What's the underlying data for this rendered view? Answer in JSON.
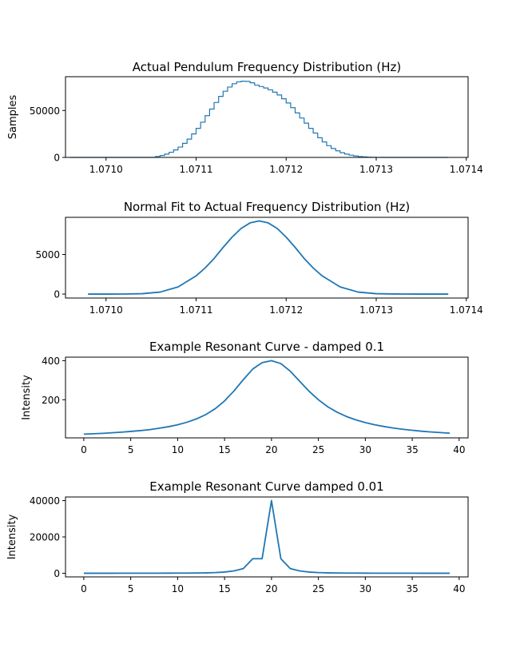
{
  "chart_data": [
    {
      "type": "histogram",
      "title": "Actual Pendulum Frequency Distribution (Hz)",
      "xlabel": "",
      "ylabel": "Samples",
      "xlim": [
        1.070955,
        1.071402
      ],
      "ylim": [
        0,
        86000
      ],
      "xticks": [
        1.071,
        1.0711,
        1.0712,
        1.0713,
        1.0714
      ],
      "xtick_labels": [
        "1.0710",
        "1.0711",
        "1.0712",
        "1.0713",
        "1.0714"
      ],
      "yticks": [
        0,
        50000
      ],
      "ytick_labels": [
        "0",
        "50000"
      ],
      "grid": false,
      "color": "#1f77b4",
      "x": [
        1.07096,
        1.071,
        1.07104,
        1.07105,
        1.071055,
        1.07106,
        1.071065,
        1.07107,
        1.071075,
        1.07108,
        1.071085,
        1.07109,
        1.071095,
        1.0711,
        1.071105,
        1.07111,
        1.071115,
        1.07112,
        1.071125,
        1.07113,
        1.071135,
        1.07114,
        1.071145,
        1.07115,
        1.071155,
        1.07116,
        1.071165,
        1.07117,
        1.071175,
        1.07118,
        1.071185,
        1.07119,
        1.071195,
        1.0712,
        1.071205,
        1.07121,
        1.071215,
        1.07122,
        1.071225,
        1.07123,
        1.071235,
        1.07124,
        1.071245,
        1.07125,
        1.071255,
        1.07126,
        1.071265,
        1.07127,
        1.071275,
        1.07128,
        1.071285,
        1.07129,
        1.071295,
        1.0713,
        1.071305,
        1.07131,
        1.07134,
        1.07138
      ],
      "values": [
        0,
        0,
        0,
        0,
        1000,
        2000,
        3500,
        5500,
        8000,
        11000,
        15000,
        19500,
        25000,
        31000,
        37500,
        44500,
        51500,
        58500,
        65000,
        70500,
        75000,
        78500,
        80500,
        81200,
        81000,
        79500,
        77000,
        75500,
        74000,
        72000,
        69500,
        66500,
        62500,
        58000,
        53000,
        47500,
        42000,
        36500,
        31000,
        26000,
        21000,
        16500,
        12500,
        9500,
        7000,
        5000,
        3500,
        2400,
        1500,
        900,
        500,
        200,
        100,
        50,
        0,
        0,
        0,
        0
      ]
    },
    {
      "type": "line",
      "title": "Normal Fit to Actual Frequency Distribution (Hz)",
      "xlabel": "",
      "ylabel": "",
      "xlim": [
        1.070955,
        1.071402
      ],
      "ylim": [
        -500,
        9700
      ],
      "xticks": [
        1.071,
        1.0711,
        1.0712,
        1.0713,
        1.0714
      ],
      "xtick_labels": [
        "1.0710",
        "1.0711",
        "1.0712",
        "1.0713",
        "1.0714"
      ],
      "yticks": [
        0,
        5000
      ],
      "ytick_labels": [
        "0",
        "5000"
      ],
      "grid": false,
      "color": "#1f77b4",
      "x": [
        1.07098,
        1.071,
        1.07102,
        1.07104,
        1.07106,
        1.07108,
        1.0711,
        1.07111,
        1.07112,
        1.07113,
        1.07114,
        1.07115,
        1.07116,
        1.07117,
        1.07118,
        1.07119,
        1.0712,
        1.07121,
        1.07122,
        1.07123,
        1.07124,
        1.07126,
        1.07128,
        1.0713,
        1.07132,
        1.07134,
        1.07136,
        1.07138
      ],
      "values": [
        0,
        0,
        5,
        50,
        250,
        900,
        2300,
        3300,
        4500,
        5900,
        7200,
        8300,
        9000,
        9250,
        9000,
        8300,
        7200,
        5900,
        4500,
        3300,
        2300,
        900,
        250,
        50,
        10,
        0,
        0,
        0
      ]
    },
    {
      "type": "line",
      "title": "Example Resonant Curve - damped 0.1",
      "xlabel": "",
      "ylabel": "Intensity",
      "xlim": [
        -1.95,
        40.95
      ],
      "ylim": [
        5,
        418
      ],
      "xticks": [
        0,
        5,
        10,
        15,
        20,
        25,
        30,
        35,
        40
      ],
      "xtick_labels": [
        "0",
        "5",
        "10",
        "15",
        "20",
        "25",
        "30",
        "35",
        "40"
      ],
      "yticks": [
        200,
        400
      ],
      "ytick_labels": [
        "200",
        "400"
      ],
      "grid": false,
      "color": "#1f77b4",
      "x": [
        0,
        1,
        2,
        3,
        4,
        5,
        6,
        7,
        8,
        9,
        10,
        11,
        12,
        13,
        14,
        15,
        16,
        17,
        18,
        19,
        20,
        21,
        22,
        23,
        24,
        25,
        26,
        27,
        28,
        29,
        30,
        31,
        32,
        33,
        34,
        35,
        36,
        37,
        38,
        39
      ],
      "values": [
        24,
        26,
        28,
        31,
        34,
        38,
        42,
        47,
        54,
        62,
        72,
        85,
        102,
        124,
        154,
        194,
        245,
        303,
        357,
        390,
        400,
        385,
        346,
        295,
        244,
        200,
        164,
        136,
        114,
        97,
        83,
        72,
        63,
        55,
        49,
        44,
        39,
        35,
        32,
        29
      ]
    },
    {
      "type": "line",
      "title": "Example Resonant Curve damped 0.01",
      "xlabel": "",
      "ylabel": "Intensity",
      "xlim": [
        -1.95,
        40.95
      ],
      "ylim": [
        -2000,
        42000
      ],
      "xticks": [
        0,
        5,
        10,
        15,
        20,
        25,
        30,
        35,
        40
      ],
      "xtick_labels": [
        "0",
        "5",
        "10",
        "15",
        "20",
        "25",
        "30",
        "35",
        "40"
      ],
      "yticks": [
        0,
        20000,
        40000
      ],
      "ytick_labels": [
        "0",
        "20000",
        "40000"
      ],
      "grid": false,
      "color": "#1f77b4",
      "x": [
        0,
        1,
        2,
        3,
        4,
        5,
        6,
        7,
        8,
        9,
        10,
        11,
        12,
        13,
        14,
        15,
        16,
        17,
        18,
        19,
        20,
        21,
        22,
        23,
        24,
        25,
        26,
        27,
        28,
        29,
        30,
        31,
        32,
        33,
        34,
        35,
        36,
        37,
        38,
        39
      ],
      "values": [
        10,
        12,
        14,
        16,
        19,
        23,
        28,
        35,
        44,
        57,
        75,
        103,
        148,
        224,
        367,
        660,
        1300,
        2550,
        8000,
        8000,
        40000,
        8000,
        2550,
        1300,
        660,
        367,
        224,
        148,
        103,
        75,
        57,
        44,
        35,
        28,
        23,
        19,
        16,
        14,
        12,
        10
      ]
    }
  ]
}
